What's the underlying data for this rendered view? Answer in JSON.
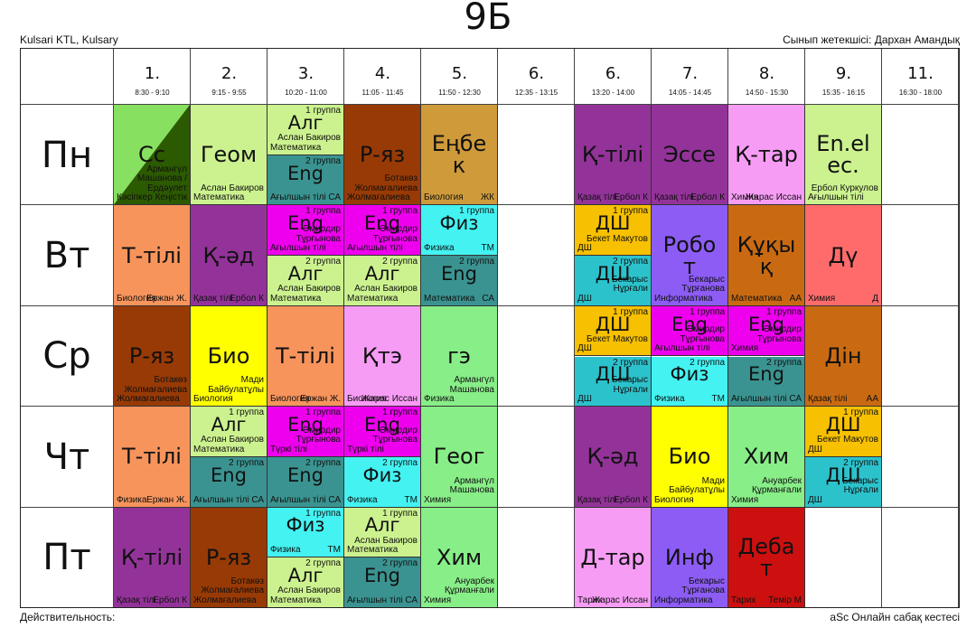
{
  "class_name": "9Б",
  "school": "Kulsari KTL, Kulsary",
  "class_teacher": "Сынып жетекшісі: Дархан Амандық",
  "validity": "Действительность:",
  "generator": "aSc Онлайн сабақ кестесі",
  "periods": [
    {
      "num": "1.",
      "time": "8:30 - 9:10"
    },
    {
      "num": "2.",
      "time": "9:15 - 9:55"
    },
    {
      "num": "3.",
      "time": "10:20 - 11:00"
    },
    {
      "num": "4.",
      "time": "11:05 - 11:45"
    },
    {
      "num": "5.",
      "time": "11:50 - 12:30"
    },
    {
      "num": "6.",
      "time": "12:35 - 13:15"
    },
    {
      "num": "6.",
      "time": "13:20 - 14:00"
    },
    {
      "num": "7.",
      "time": "14:05 - 14:45"
    },
    {
      "num": "8.",
      "time": "14:50 - 15:30"
    },
    {
      "num": "9.",
      "time": "15:35 - 16:15"
    },
    {
      "num": "11.",
      "time": "16:30 - 18:00"
    }
  ],
  "days": [
    "Пн",
    "Вт",
    "Ср",
    "Чт",
    "Пт"
  ],
  "lessons": [
    {
      "d": 0,
      "p": 0,
      "subject": "Сс",
      "teacher": "Армангүл Машанова / Ердәулет",
      "room": "Кәсіпкер",
      "code": "Кеңістік",
      "bg": "#88e060",
      "diag": "#2c5a00"
    },
    {
      "d": 0,
      "p": 1,
      "subject": "Геом",
      "teacher": "Аслан Бакиров",
      "room": "Математика",
      "code": "",
      "bg": "#ccf28f"
    },
    {
      "d": 0,
      "p": 2,
      "half": "top",
      "group": "1 группа",
      "subject": "Алг",
      "teacher": "Аслан Бакиров",
      "room": "Математика",
      "code": "",
      "bg": "#ccf28f"
    },
    {
      "d": 0,
      "p": 2,
      "half": "bottom",
      "group": "2 группа",
      "subject": "Eng",
      "teacher": "",
      "room": "Ағылшын тілі",
      "code": "СА",
      "bg": "#3a9390"
    },
    {
      "d": 0,
      "p": 3,
      "subject": "Р-яз",
      "teacher": "Ботакөз Жолмағалиева",
      "room": "Жолмағалиева",
      "code": "",
      "bg": "#983a05"
    },
    {
      "d": 0,
      "p": 4,
      "subject": "Еңбе к",
      "teacher": "",
      "room": "Биология",
      "code": "ЖК",
      "bg": "#cf9a3a"
    },
    {
      "d": 0,
      "p": 6,
      "subject": "Қ-тілі",
      "teacher": "",
      "room": "Қазақ тілі",
      "code": "Ербол К",
      "bg": "#933399"
    },
    {
      "d": 0,
      "p": 7,
      "subject": "Эссе",
      "teacher": "",
      "room": "Қазақ тілі",
      "code": "Ербол К",
      "bg": "#933399"
    },
    {
      "d": 0,
      "p": 8,
      "subject": "Қ-тар",
      "teacher": "",
      "room": "Химия",
      "code": "Жарас Иссан",
      "bg": "#f79cf5"
    },
    {
      "d": 0,
      "p": 9,
      "subject": "En.el ec.",
      "teacher": "Ербол Куркулов",
      "room": "Ағылшын тілі",
      "code": "",
      "bg": "#ccf28f"
    },
    {
      "d": 1,
      "p": 0,
      "subject": "Т-тілі",
      "teacher": "",
      "room": "Биология",
      "code": "Ержан Ж.",
      "bg": "#f7945c"
    },
    {
      "d": 1,
      "p": 1,
      "subject": "Қ-әд",
      "teacher": "",
      "room": "Қазақ тілі",
      "code": "Ербол К",
      "bg": "#933399"
    },
    {
      "d": 1,
      "p": 2,
      "half": "top",
      "group": "1 группа",
      "subject": "Eng",
      "teacher": "Әмирдир Тұрғынова",
      "room": "Ағылшын тілі",
      "code": "",
      "bg": "#ee00ee"
    },
    {
      "d": 1,
      "p": 2,
      "half": "bottom",
      "group": "2 группа",
      "subject": "Алг",
      "teacher": "Аслан Бакиров",
      "room": "Математика",
      "code": "",
      "bg": "#ccf28f"
    },
    {
      "d": 1,
      "p": 3,
      "half": "top",
      "group": "1 группа",
      "subject": "Eng",
      "teacher": "Әмирдир Тұрғынова",
      "room": "Ағылшын тілі",
      "code": "",
      "bg": "#ee00ee"
    },
    {
      "d": 1,
      "p": 3,
      "half": "bottom",
      "group": "2 группа",
      "subject": "Алг",
      "teacher": "Аслан Бакиров",
      "room": "Математика",
      "code": "",
      "bg": "#ccf28f"
    },
    {
      "d": 1,
      "p": 4,
      "half": "top",
      "group": "1 группа",
      "subject": "Физ",
      "teacher": "",
      "room": "Физика",
      "code": "ТМ",
      "bg": "#44f2f2"
    },
    {
      "d": 1,
      "p": 4,
      "half": "bottom",
      "group": "2 группа",
      "subject": "Eng",
      "teacher": "",
      "room": "Математика",
      "code": "СА",
      "bg": "#3a9390"
    },
    {
      "d": 1,
      "p": 6,
      "half": "top",
      "group": "1 группа",
      "subject": "ДШ",
      "teacher": "Бекет Макутов",
      "room": "ДШ",
      "code": "",
      "bg": "#f7c000"
    },
    {
      "d": 1,
      "p": 6,
      "half": "bottom",
      "group": "2 группа",
      "subject": "ДШ",
      "teacher": "Бекарыс Нұрғали",
      "room": "ДШ",
      "code": "",
      "bg": "#2cc2cc"
    },
    {
      "d": 1,
      "p": 7,
      "subject": "Робо т",
      "teacher": "Бекарыс Тұрғанова",
      "room": "Информатика",
      "code": "",
      "bg": "#8d5cf5"
    },
    {
      "d": 1,
      "p": 8,
      "subject": "Құқы қ",
      "teacher": "",
      "room": "Математика",
      "code": "АА",
      "bg": "#c96a12"
    },
    {
      "d": 1,
      "p": 9,
      "subject": "Дү",
      "teacher": "",
      "room": "Химия",
      "code": "Д",
      "bg": "#ff6b6b"
    },
    {
      "d": 2,
      "p": 0,
      "subject": "Р-яз",
      "teacher": "Ботакөз Жолмағалиева",
      "room": "Жолмағалиева",
      "code": "",
      "bg": "#983a05"
    },
    {
      "d": 2,
      "p": 1,
      "subject": "Био",
      "teacher": "Мади Байбулатұлы",
      "room": "Биология",
      "code": "",
      "bg": "#ffff00"
    },
    {
      "d": 2,
      "p": 2,
      "subject": "Т-тілі",
      "teacher": "",
      "room": "Биология",
      "code": "Ержан Ж.",
      "bg": "#f7945c"
    },
    {
      "d": 2,
      "p": 3,
      "subject": "Қтэ",
      "teacher": "",
      "room": "Биология",
      "code": "Жарас Иссан",
      "bg": "#f79cf5"
    },
    {
      "d": 2,
      "p": 4,
      "subject": "гэ",
      "teacher": "Армангүл Машанова",
      "room": "Физика",
      "code": "",
      "bg": "#88ee88"
    },
    {
      "d": 2,
      "p": 6,
      "half": "top",
      "group": "1 группа",
      "subject": "ДШ",
      "teacher": "Бекет Макутов",
      "room": "ДШ",
      "code": "",
      "bg": "#f7c000"
    },
    {
      "d": 2,
      "p": 6,
      "half": "bottom",
      "group": "2 группа",
      "subject": "ДШ",
      "teacher": "Бекарыс Нұрғали",
      "room": "ДШ",
      "code": "",
      "bg": "#2cc2cc"
    },
    {
      "d": 2,
      "p": 7,
      "half": "top",
      "group": "1 группа",
      "subject": "Eng",
      "teacher": "Әмирдир Тұрғынова",
      "room": "Ағылшын тілі",
      "code": "",
      "bg": "#ee00ee"
    },
    {
      "d": 2,
      "p": 7,
      "half": "bottom",
      "group": "2 группа",
      "subject": "Физ",
      "teacher": "",
      "room": "Физика",
      "code": "ТМ",
      "bg": "#44f2f2"
    },
    {
      "d": 2,
      "p": 8,
      "half": "top",
      "group": "1 группа",
      "subject": "Eng",
      "teacher": "Әмирдир Тұрғынова",
      "room": "Химия",
      "code": "",
      "bg": "#ee00ee"
    },
    {
      "d": 2,
      "p": 8,
      "half": "bottom",
      "group": "2 группа",
      "subject": "Eng",
      "teacher": "",
      "room": "Ағылшын тілі",
      "code": "СА",
      "bg": "#3a9390"
    },
    {
      "d": 2,
      "p": 9,
      "subject": "Дін",
      "teacher": "",
      "room": "Қазақ тілі",
      "code": "АА",
      "bg": "#c96a12"
    },
    {
      "d": 3,
      "p": 0,
      "subject": "Т-тілі",
      "teacher": "",
      "room": "Физика",
      "code": "Ержан Ж.",
      "bg": "#f7945c"
    },
    {
      "d": 3,
      "p": 1,
      "half": "top",
      "group": "1 группа",
      "subject": "Алг",
      "teacher": "Аслан Бакиров",
      "room": "Математика",
      "code": "",
      "bg": "#ccf28f"
    },
    {
      "d": 3,
      "p": 1,
      "half": "bottom",
      "group": "2 группа",
      "subject": "Eng",
      "teacher": "",
      "room": "Ағылшын тілі",
      "code": "СА",
      "bg": "#3a9390"
    },
    {
      "d": 3,
      "p": 2,
      "half": "top",
      "group": "1 группа",
      "subject": "Eng",
      "teacher": "Әмирдир Тұрғынова",
      "room": "Түркі тілі",
      "code": "",
      "bg": "#ee00ee"
    },
    {
      "d": 3,
      "p": 2,
      "half": "bottom",
      "group": "2 группа",
      "subject": "Eng",
      "teacher": "",
      "room": "Ағылшын тілі",
      "code": "СА",
      "bg": "#3a9390"
    },
    {
      "d": 3,
      "p": 3,
      "half": "top",
      "group": "1 группа",
      "subject": "Eng",
      "teacher": "Әмирдир Тұрғынова",
      "room": "Түркі тілі",
      "code": "",
      "bg": "#ee00ee"
    },
    {
      "d": 3,
      "p": 3,
      "half": "bottom",
      "group": "2 группа",
      "subject": "Физ",
      "teacher": "",
      "room": "Физика",
      "code": "ТМ",
      "bg": "#44f2f2"
    },
    {
      "d": 3,
      "p": 4,
      "subject": "Геог",
      "teacher": "Армангүл Машанова",
      "room": "Химия",
      "code": "",
      "bg": "#88ee88"
    },
    {
      "d": 3,
      "p": 6,
      "subject": "Қ-әд",
      "teacher": "",
      "room": "Қазақ тілі",
      "code": "Ербол К",
      "bg": "#933399"
    },
    {
      "d": 3,
      "p": 7,
      "subject": "Био",
      "teacher": "Мади Байбулатұлы",
      "room": "Биология",
      "code": "",
      "bg": "#ffff00"
    },
    {
      "d": 3,
      "p": 8,
      "subject": "Хим",
      "teacher": "Ануарбек Құрманғали",
      "room": "Химия",
      "code": "",
      "bg": "#88ee88"
    },
    {
      "d": 3,
      "p": 9,
      "half": "top",
      "group": "1 группа",
      "subject": "ДШ",
      "teacher": "Бекет Макутов",
      "room": "ДШ",
      "code": "",
      "bg": "#f7c000"
    },
    {
      "d": 3,
      "p": 9,
      "half": "bottom",
      "group": "2 группа",
      "subject": "ДШ",
      "teacher": "Бекарыс Нұрғали",
      "room": "ДШ",
      "code": "",
      "bg": "#2cc2cc"
    },
    {
      "d": 4,
      "p": 0,
      "subject": "Қ-тілі",
      "teacher": "",
      "room": "Қазақ тілі",
      "code": "Ербол К",
      "bg": "#933399"
    },
    {
      "d": 4,
      "p": 1,
      "subject": "Р-яз",
      "teacher": "Ботакөз Жолмағалиева",
      "room": "Жолмағалиева",
      "code": "",
      "bg": "#983a05"
    },
    {
      "d": 4,
      "p": 2,
      "half": "top",
      "group": "1 группа",
      "subject": "Физ",
      "teacher": "",
      "room": "Физика",
      "code": "ТМ",
      "bg": "#44f2f2"
    },
    {
      "d": 4,
      "p": 2,
      "half": "bottom",
      "group": "2 группа",
      "subject": "Алг",
      "teacher": "Аслан Бакиров",
      "room": "Математика",
      "code": "",
      "bg": "#ccf28f"
    },
    {
      "d": 4,
      "p": 3,
      "half": "top",
      "group": "1 группа",
      "subject": "Алг",
      "teacher": "Аслан Бакиров",
      "room": "Математика",
      "code": "",
      "bg": "#ccf28f"
    },
    {
      "d": 4,
      "p": 3,
      "half": "bottom",
      "group": "2 группа",
      "subject": "Eng",
      "teacher": "",
      "room": "Ағылшын тілі",
      "code": "СА",
      "bg": "#3a9390"
    },
    {
      "d": 4,
      "p": 4,
      "subject": "Хим",
      "teacher": "Ануарбек Құрманғали",
      "room": "Химия",
      "code": "",
      "bg": "#88ee88"
    },
    {
      "d": 4,
      "p": 6,
      "subject": "Д-тар",
      "teacher": "",
      "room": "Тарих",
      "code": "Жарас Иссан",
      "bg": "#f79cf5"
    },
    {
      "d": 4,
      "p": 7,
      "subject": "Инф",
      "teacher": "Бекарыс Тұрғанова",
      "room": "Информатика",
      "code": "",
      "bg": "#8d5cf5"
    },
    {
      "d": 4,
      "p": 8,
      "subject": "Деба т",
      "teacher": "",
      "room": "Тарих",
      "code": "Темір М",
      "bg": "#cc1010"
    }
  ]
}
